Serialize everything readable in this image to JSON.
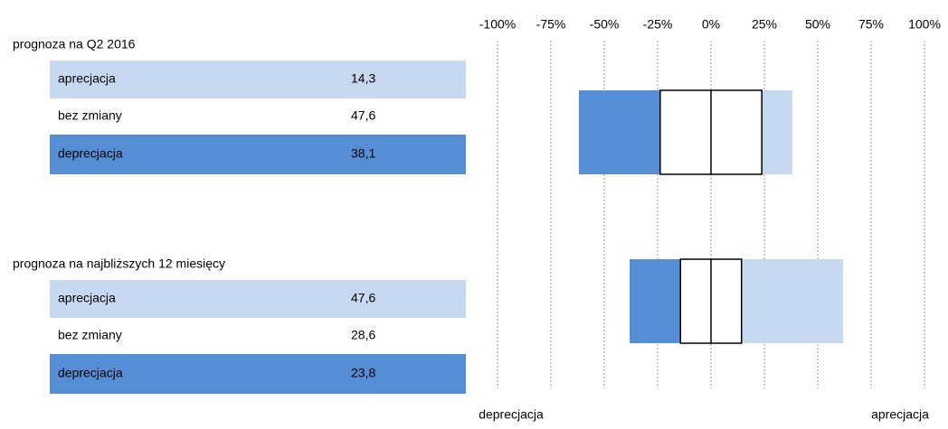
{
  "chart_data": {
    "type": "diverging_bar",
    "categories": [
      "prognoza na Q2 2016",
      "prognoza na najbliższych 12 miesięcy"
    ],
    "series": [
      {
        "name": "aprecjacja",
        "color": "#c6d9f1",
        "values": [
          14.3,
          47.6
        ],
        "value_labels": [
          "14,3",
          "47,6"
        ]
      },
      {
        "name": "bez zmiany",
        "color": "#ffffff",
        "values": [
          47.6,
          28.6
        ],
        "value_labels": [
          "47,6",
          "28,6"
        ]
      },
      {
        "name": "deprecjacja",
        "color": "#558ed5",
        "values": [
          38.1,
          23.8
        ],
        "value_labels": [
          "38,1",
          "23,8"
        ]
      }
    ],
    "xlim": [
      -100,
      100
    ],
    "xticks": [
      {
        "value": -100,
        "label": "-100%"
      },
      {
        "value": -75,
        "label": "-75%"
      },
      {
        "value": -50,
        "label": "-50%"
      },
      {
        "value": -25,
        "label": "-25%"
      },
      {
        "value": 0,
        "label": "0%"
      },
      {
        "value": 25,
        "label": "25%"
      },
      {
        "value": 50,
        "label": "50%"
      },
      {
        "value": 75,
        "label": "75%"
      },
      {
        "value": 100,
        "label": "100%"
      }
    ],
    "xlabel_left": "deprecjacja",
    "xlabel_right": "aprecjacja",
    "grid": true
  }
}
